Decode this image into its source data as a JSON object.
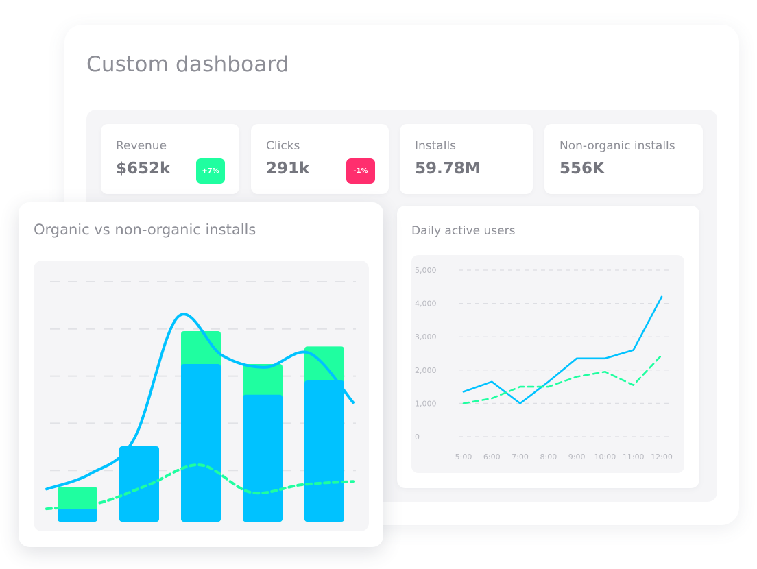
{
  "dashboard": {
    "title": "Custom dashboard"
  },
  "kpis": [
    {
      "label": "Revenue",
      "value": "$652k",
      "badge": "+7%",
      "badge_color": "#1ffea0"
    },
    {
      "label": "Clicks",
      "value": "291k",
      "badge": "-1%",
      "badge_color": "#ff2e6e"
    },
    {
      "label": "Installs",
      "value": "59.78M"
    },
    {
      "label": "Non-organic installs",
      "value": "556K"
    }
  ],
  "colors": {
    "primary_blue": "#00c2ff",
    "accent_green": "#1ffea0",
    "negative_pink": "#ff2e6e",
    "muted_text": "#8d8e96",
    "axis_text": "#b8b9c0"
  },
  "icons": [],
  "chart_data": [
    {
      "type": "bar",
      "title": "Organic vs non-organic installs",
      "categories": [
        "",
        "",
        "",
        "",
        ""
      ],
      "series": [
        {
          "values": [
            8,
            65,
            140,
            112,
            125
          ],
          "color": "#00c2ff"
        },
        {
          "values": [
            28,
            63,
            170,
            140,
            156
          ],
          "color": "#1ffea0"
        }
      ],
      "overlay_lines": [
        {
          "style": "solid",
          "color": "#00c2ff",
          "values": [
            26,
            40,
            72,
            183,
            148,
            137,
            150,
            105
          ]
        },
        {
          "style": "dashed",
          "color": "#1ffea0",
          "values": [
            8,
            13,
            30,
            48,
            23,
            30,
            33
          ]
        }
      ],
      "ylim": [
        0,
        215
      ],
      "grid": true,
      "gridlines": 5
    },
    {
      "type": "line",
      "title": "Daily active users",
      "x": [
        "5:00",
        "6:00",
        "7:00",
        "8:00",
        "9:00",
        "10:00",
        "11:00",
        "12:00"
      ],
      "yticks": [
        "0",
        "1,000",
        "2,000",
        "3,000",
        "4,000",
        "5,000"
      ],
      "ylim": [
        0,
        5000
      ],
      "series": [
        {
          "style": "solid",
          "color": "#00c2ff",
          "values": [
            1350,
            1650,
            1000,
            1650,
            2350,
            2350,
            2600,
            4200
          ]
        },
        {
          "style": "dashed",
          "color": "#1ffea0",
          "values": [
            1000,
            1150,
            1500,
            1500,
            1800,
            1950,
            1550,
            2450
          ]
        }
      ],
      "grid": true
    }
  ]
}
